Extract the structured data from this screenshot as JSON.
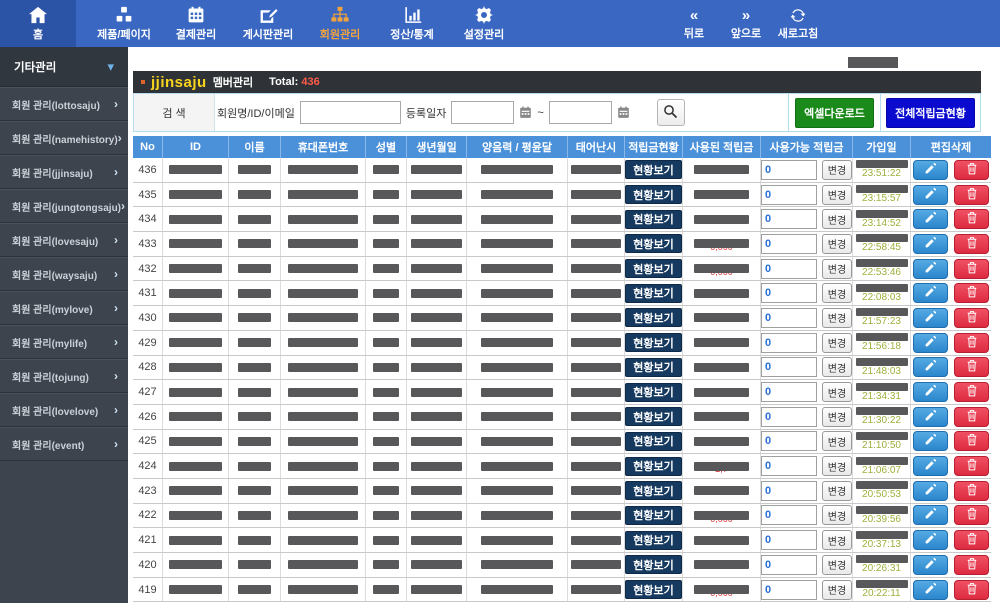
{
  "navbar": {
    "home": {
      "label": "홈",
      "icon": "home-icon"
    },
    "menu": [
      {
        "label": "제품/페이지",
        "icon": "cubes-icon",
        "active": false
      },
      {
        "label": "결제관리",
        "icon": "calendar-icon",
        "active": false
      },
      {
        "label": "게시판관리",
        "icon": "edit-square-icon",
        "active": false
      },
      {
        "label": "회원관리",
        "icon": "sitemap-icon",
        "active": true
      },
      {
        "label": "정산/통계",
        "icon": "chart-icon",
        "active": false
      },
      {
        "label": "설정관리",
        "icon": "gear-icon",
        "active": false
      }
    ],
    "history": [
      {
        "label": "뒤로",
        "icon": "back-icon"
      },
      {
        "label": "앞으로",
        "icon": "forward-icon"
      },
      {
        "label": "새로고침",
        "icon": "refresh-icon"
      }
    ],
    "active_color": "#f2a33c"
  },
  "sidebar": {
    "header": {
      "label": "기타관리"
    },
    "items": [
      {
        "label": "회원 관리(lottosaju)"
      },
      {
        "label": "회원 관리(namehistory)"
      },
      {
        "label": "회원 관리(jjinsaju)"
      },
      {
        "label": "회원 관리(jungtongsaju)"
      },
      {
        "label": "회원 관리(lovesaju)"
      },
      {
        "label": "회원 관리(waysaju)"
      },
      {
        "label": "회원 관리(mylove)"
      },
      {
        "label": "회원 관리(mylife)"
      },
      {
        "label": "회원 관리(tojung)"
      },
      {
        "label": "회원 관리(lovelove)"
      },
      {
        "label": "회원 관리(event)"
      }
    ]
  },
  "page_header": {
    "site": "jjinsaju",
    "title": "멤버관리",
    "total_label": "Total:",
    "total_value": "436"
  },
  "search": {
    "label": "검 색",
    "member_label": "회원명/ID/이메일",
    "member_value": "",
    "date_label": "등록일자",
    "date_from": "",
    "date_to": "",
    "separator": "~"
  },
  "actions": {
    "excel_label": "엑셀다운로드",
    "excel_color": "#1a8a1a",
    "points_label": "전체적립금현황",
    "points_color": "#0b0bd0"
  },
  "table": {
    "columns": [
      "No",
      "ID",
      "이름",
      "휴대폰번호",
      "성별",
      "생년월일",
      "양음력 / 평윤달",
      "태어난시",
      "적립금현황",
      "사용된 적립금",
      "사용가능 적립금",
      "가입일",
      "편집삭제"
    ],
    "header_color": "#4b91da",
    "status_button_label": "현황보기",
    "change_button_label": "변경",
    "available_points_value": "0",
    "rows": [
      {
        "no": "436",
        "join_time": "23:51:22",
        "used_peek": ""
      },
      {
        "no": "435",
        "join_time": "23:15:57",
        "used_peek": ""
      },
      {
        "no": "434",
        "join_time": "23:14:52",
        "used_peek": ""
      },
      {
        "no": "433",
        "join_time": "22:58:45",
        "used_peek": "0,000"
      },
      {
        "no": "432",
        "join_time": "22:53:46",
        "used_peek": "0,000"
      },
      {
        "no": "431",
        "join_time": "22:08:03",
        "used_peek": ""
      },
      {
        "no": "430",
        "join_time": "21:57:23",
        "used_peek": ""
      },
      {
        "no": "429",
        "join_time": "21:56:18",
        "used_peek": ""
      },
      {
        "no": "428",
        "join_time": "21:48:03",
        "used_peek": ""
      },
      {
        "no": "427",
        "join_time": "21:34:31",
        "used_peek": ""
      },
      {
        "no": "426",
        "join_time": "21:30:22",
        "used_peek": ""
      },
      {
        "no": "425",
        "join_time": "21:10:50",
        "used_peek": ""
      },
      {
        "no": "424",
        "join_time": "21:06:07",
        "used_peek": "2,7"
      },
      {
        "no": "423",
        "join_time": "20:50:53",
        "used_peek": ""
      },
      {
        "no": "422",
        "join_time": "20:39:56",
        "used_peek": "0,000"
      },
      {
        "no": "421",
        "join_time": "20:37:13",
        "used_peek": ""
      },
      {
        "no": "420",
        "join_time": "20:26:31",
        "used_peek": ""
      },
      {
        "no": "419",
        "join_time": "20:22:11",
        "used_peek": "0,000"
      }
    ]
  }
}
